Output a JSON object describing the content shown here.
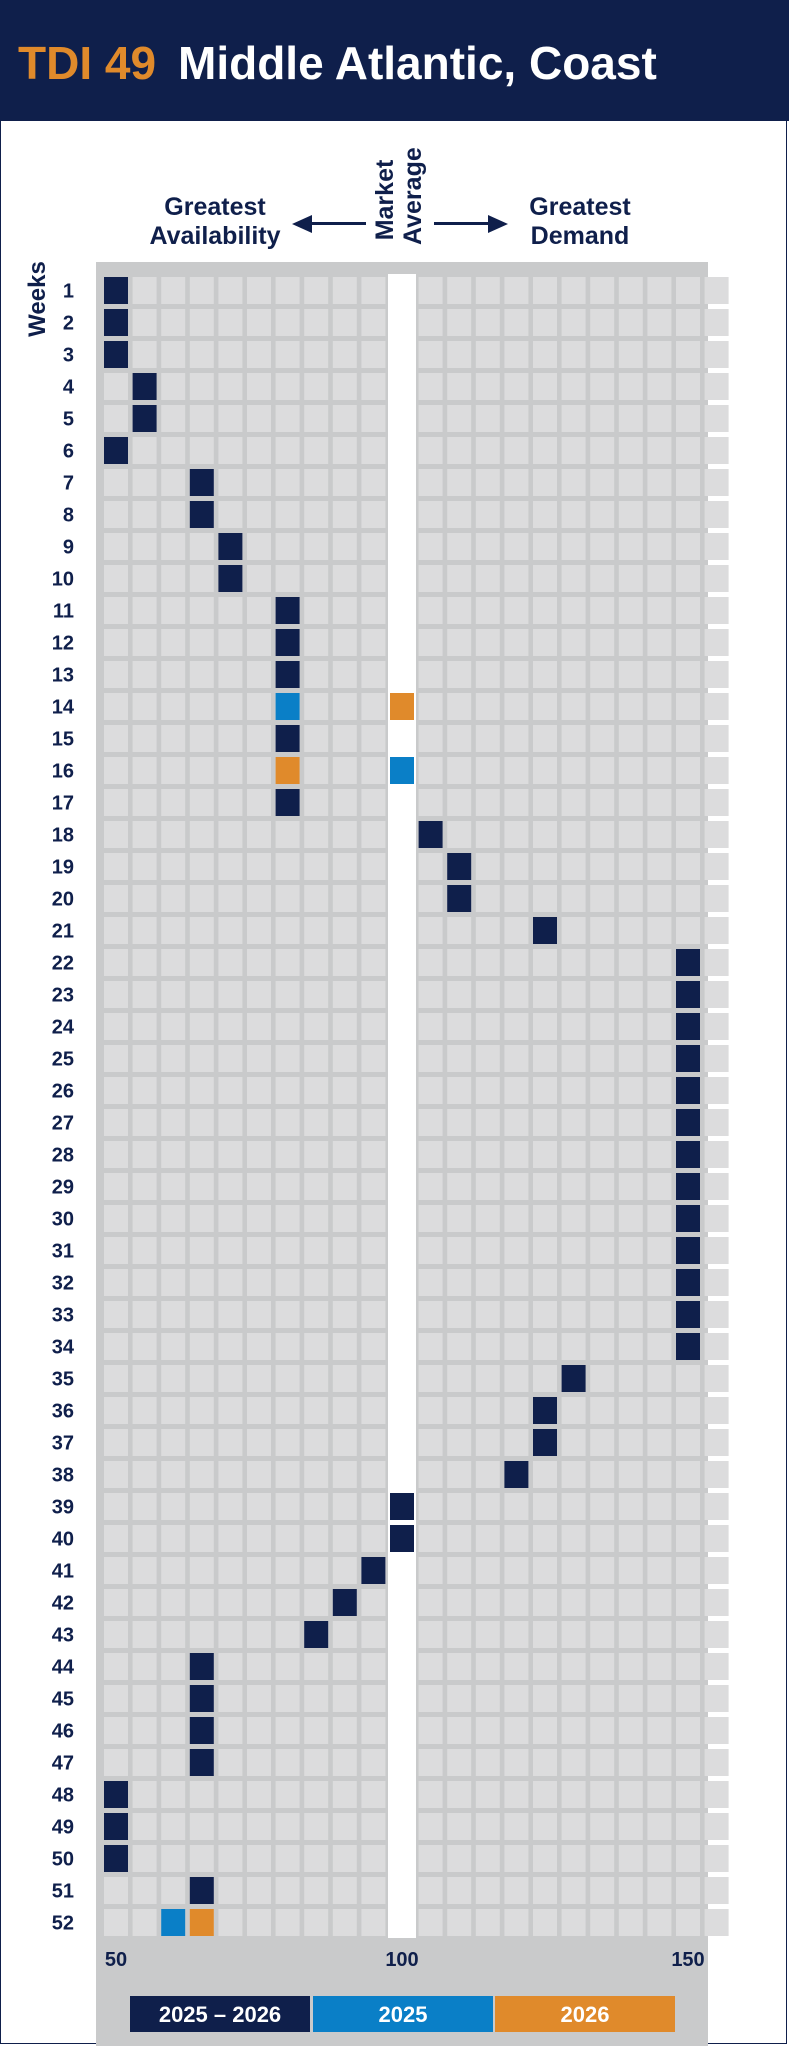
{
  "header": {
    "code": "TDI 49",
    "title": "Middle Atlantic, Coast"
  },
  "colors": {
    "navy": "#0f1f4b",
    "blue": "#0a7fc7",
    "orange": "#e08a2b",
    "cell": "#dcdcdd",
    "panel": "#c9cacb",
    "gap": "#ffffff"
  },
  "chart_data": {
    "type": "heatmap",
    "column_header_left": [
      "Greatest",
      "Availability"
    ],
    "column_header_middle": [
      "Market",
      "Average"
    ],
    "column_header_right": [
      "Greatest",
      "Demand"
    ],
    "ylabel": "Weeks",
    "x_ticks": [
      50,
      100,
      150
    ],
    "xlim": [
      50,
      150
    ],
    "series": [
      {
        "name": "2025 – 2026",
        "color": "#0f1f4b",
        "points": [
          {
            "week": 1,
            "x": 50
          },
          {
            "week": 2,
            "x": 50
          },
          {
            "week": 3,
            "x": 50
          },
          {
            "week": 4,
            "x": 55
          },
          {
            "week": 5,
            "x": 55
          },
          {
            "week": 6,
            "x": 50
          },
          {
            "week": 7,
            "x": 65
          },
          {
            "week": 8,
            "x": 65
          },
          {
            "week": 9,
            "x": 70
          },
          {
            "week": 10,
            "x": 70
          },
          {
            "week": 11,
            "x": 80
          },
          {
            "week": 12,
            "x": 80
          },
          {
            "week": 13,
            "x": 80
          },
          {
            "week": 15,
            "x": 80
          },
          {
            "week": 17,
            "x": 80
          },
          {
            "week": 18,
            "x": 105
          },
          {
            "week": 19,
            "x": 110
          },
          {
            "week": 20,
            "x": 110
          },
          {
            "week": 21,
            "x": 125
          },
          {
            "week": 22,
            "x": 150
          },
          {
            "week": 23,
            "x": 150
          },
          {
            "week": 24,
            "x": 150
          },
          {
            "week": 25,
            "x": 150
          },
          {
            "week": 26,
            "x": 150
          },
          {
            "week": 27,
            "x": 150
          },
          {
            "week": 28,
            "x": 150
          },
          {
            "week": 29,
            "x": 150
          },
          {
            "week": 30,
            "x": 150
          },
          {
            "week": 31,
            "x": 150
          },
          {
            "week": 32,
            "x": 150
          },
          {
            "week": 33,
            "x": 150
          },
          {
            "week": 34,
            "x": 150
          },
          {
            "week": 35,
            "x": 130
          },
          {
            "week": 36,
            "x": 125
          },
          {
            "week": 37,
            "x": 125
          },
          {
            "week": 38,
            "x": 120
          },
          {
            "week": 39,
            "x": 100
          },
          {
            "week": 40,
            "x": 100
          },
          {
            "week": 41,
            "x": 95
          },
          {
            "week": 42,
            "x": 90
          },
          {
            "week": 43,
            "x": 85
          },
          {
            "week": 44,
            "x": 65
          },
          {
            "week": 45,
            "x": 65
          },
          {
            "week": 46,
            "x": 65
          },
          {
            "week": 47,
            "x": 65
          },
          {
            "week": 48,
            "x": 50
          },
          {
            "week": 49,
            "x": 50
          },
          {
            "week": 50,
            "x": 50
          },
          {
            "week": 51,
            "x": 65
          }
        ]
      },
      {
        "name": "2025",
        "color": "#0a7fc7",
        "points": [
          {
            "week": 14,
            "x": 80
          },
          {
            "week": 16,
            "x": 100
          },
          {
            "week": 52,
            "x": 60
          }
        ]
      },
      {
        "name": "2026",
        "color": "#e08a2b",
        "points": [
          {
            "week": 14,
            "x": 100
          },
          {
            "week": 16,
            "x": 80
          },
          {
            "week": 52,
            "x": 65
          }
        ]
      }
    ]
  }
}
